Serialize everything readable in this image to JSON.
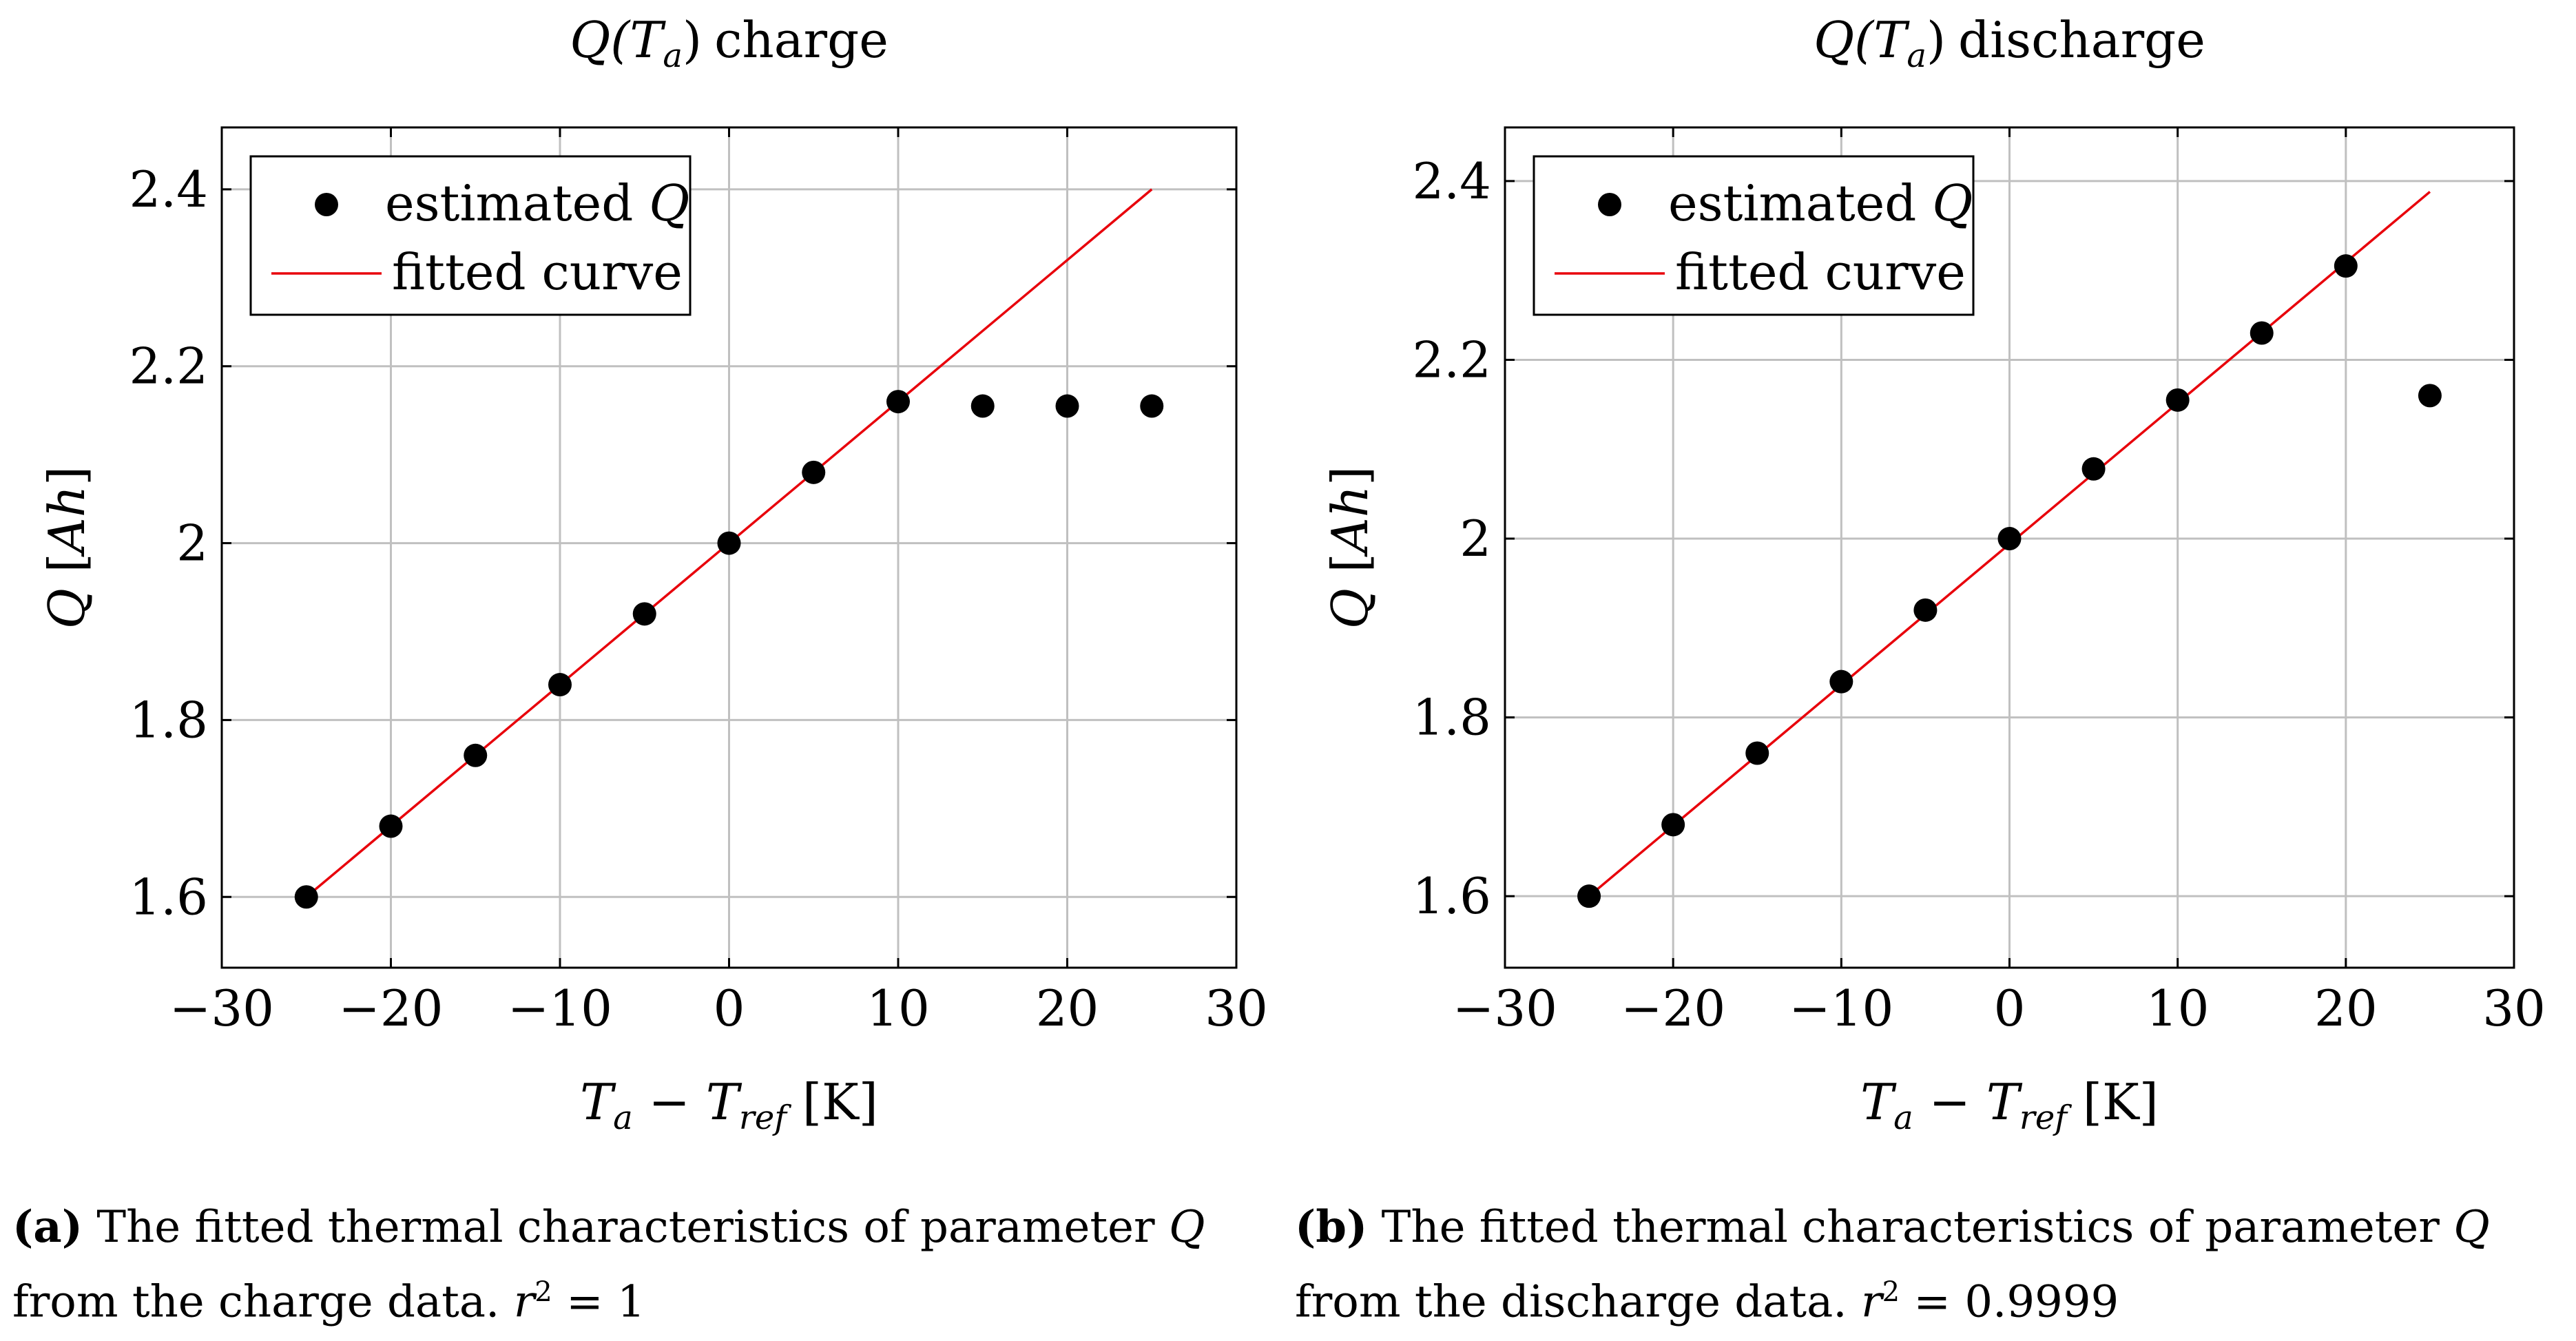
{
  "chart_data": [
    {
      "type": "scatter",
      "title": "Q(Ta) charge",
      "title_main": "Q(",
      "title_sym": "T",
      "title_sub": "a",
      "title_close": ")",
      "title_word": "charge",
      "xlabel": "Ta − Tref [K]",
      "ylabel": "Q [Ah]",
      "xlim": [
        -30,
        30
      ],
      "ylim": [
        1.52,
        2.47
      ],
      "xticks": [
        -30,
        -20,
        -10,
        0,
        10,
        20,
        30
      ],
      "xtick_labels": [
        "−30",
        "−20",
        "−10",
        "0",
        "10",
        "20",
        "30"
      ],
      "yticks": [
        1.6,
        1.8,
        2.0,
        2.2,
        2.4
      ],
      "ytick_labels": [
        "1.6",
        "1.8",
        "2",
        "2.2",
        "2.4"
      ],
      "grid": true,
      "legend_position": "top-left",
      "series": [
        {
          "name": "estimated Q",
          "kind": "scatter",
          "color": "#000000",
          "x": [
            -25,
            -20,
            -15,
            -10,
            -5,
            0,
            5,
            10,
            15,
            20,
            25
          ],
          "y": [
            1.6,
            1.68,
            1.76,
            1.84,
            1.92,
            2.0,
            2.08,
            2.16,
            2.155,
            2.155,
            2.155
          ]
        },
        {
          "name": "fitted curve",
          "kind": "line",
          "color": "#e8000b",
          "x": [
            -25,
            25
          ],
          "y": [
            1.6,
            2.4
          ]
        }
      ]
    },
    {
      "type": "scatter",
      "title": "Q(Ta) discharge",
      "title_main": "Q(",
      "title_sym": "T",
      "title_sub": "a",
      "title_close": ")",
      "title_word": "discharge",
      "xlabel": "Ta − Tref [K]",
      "ylabel": "Q [Ah]",
      "xlim": [
        -30,
        30
      ],
      "ylim": [
        1.52,
        2.46
      ],
      "xticks": [
        -30,
        -20,
        -10,
        0,
        10,
        20,
        30
      ],
      "xtick_labels": [
        "−30",
        "−20",
        "−10",
        "0",
        "10",
        "20",
        "30"
      ],
      "yticks": [
        1.6,
        1.8,
        2.0,
        2.2,
        2.4
      ],
      "ytick_labels": [
        "1.6",
        "1.8",
        "2",
        "2.2",
        "2.4"
      ],
      "grid": true,
      "legend_position": "top-left",
      "series": [
        {
          "name": "estimated Q",
          "kind": "scatter",
          "color": "#000000",
          "x": [
            -25,
            -20,
            -15,
            -10,
            -5,
            0,
            5,
            10,
            15,
            20,
            25
          ],
          "y": [
            1.6,
            1.68,
            1.76,
            1.84,
            1.92,
            2.0,
            2.078,
            2.155,
            2.23,
            2.305,
            2.16
          ]
        },
        {
          "name": "fitted curve",
          "kind": "line",
          "color": "#e8000b",
          "x": [
            -25,
            25
          ],
          "y": [
            1.6,
            2.388
          ]
        }
      ]
    }
  ],
  "axis_text": {
    "x_sym1": "T",
    "x_sub1": "a",
    "x_minus": " − ",
    "x_sym2": "T",
    "x_sub2": "ref",
    "x_unit": " [K]",
    "y_sym": "Q",
    "y_unit_open": " [",
    "y_unit": "Ah",
    "y_unit_close": "]",
    "legend_q_prefix": "estimated ",
    "legend_q_sym": "Q",
    "legend_fit": "fitted curve"
  },
  "captions": {
    "a": {
      "label": "(a)",
      "text1": " The fitted thermal characteristics of parameter ",
      "sym": "Q",
      "text2": " from the charge data. ",
      "r": "r",
      "exp": "2",
      "eq": " = 1"
    },
    "b": {
      "label": "(b)",
      "text1": " The fitted thermal characteristics of parameter ",
      "sym": "Q",
      "text2": " from the discharge data. ",
      "r": "r",
      "exp": "2",
      "eq": " = 0.9999"
    }
  }
}
